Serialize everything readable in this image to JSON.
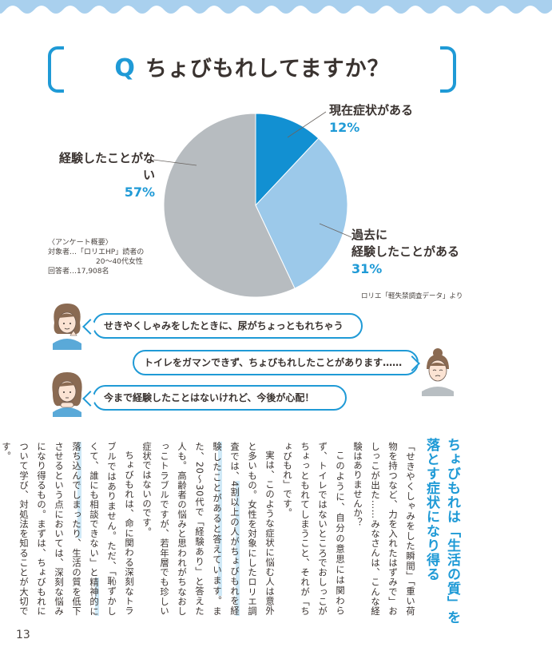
{
  "title": {
    "q": "Q",
    "text": "ちょびもれしてますか？"
  },
  "chart_data": {
    "type": "pie",
    "slices": [
      {
        "label": "現在症状がある",
        "value": 12,
        "display": "12%",
        "color": "#1290d2"
      },
      {
        "label": "過去に 経験したことがある",
        "value": 31,
        "display": "31%",
        "color": "#9cc9ea"
      },
      {
        "label": "経験したことがない",
        "value": 57,
        "display": "57%",
        "color": "#b7bcc0"
      }
    ]
  },
  "labels": {
    "current": "現在症状がある",
    "current_pct": "12%",
    "past_1": "過去に",
    "past_2": "経験したことがある",
    "past_pct": "31%",
    "never": "経験したことがない",
    "never_pct": "57%"
  },
  "survey": {
    "line1": "〈アンケート概要〉",
    "line2": "対象者…「ロリエHP」読者の",
    "line3": "20～40代女性",
    "line4": "回答者…17,908名"
  },
  "source": "ロリエ「軽失禁調査データ」より",
  "bubbles": [
    "せきやくしゃみをしたときに、尿がちょっともれちゃう",
    "トイレをガマンできず、ちょびもれしたことがあります……",
    "今まで経験したことはないけれど、今後が心配！"
  ],
  "article": {
    "heading": "ちょびもれは「生活の質」を落とす症状になり得る",
    "p1": "「せきやくしゃみをした瞬間」「重い荷物を持つなど、力を入れたはずみで」おしっこが出た……みなさんは、こんな経験はありませんか？",
    "p2": "このように、自分の意思には関わらず、トイレではないところでおしっこがちょっともれてしまうこと、それが「ちょびもれ」です。",
    "p3a": "実は、このような症状に悩む人は意外と多いもの。女性を対象にしたロリエ調査では、",
    "p3hl": "4割以上の人がちょびもれを経験したことがあると答えています",
    "p3b": "。また、20～30代で「経験あり」と答えた人も。高齢者の悩みと思われがちなおしっこトラブルですが、若年層でも珍しい症状ではないのです。",
    "p4a": "ちょびもれは、命に関わる深刻なトラブルではありません。ただ、「恥ずかしくて、誰にも相談できない」と",
    "p4hl": "精神的に落ち込んでしまったり",
    "p4b": "、生活の質を低下させるという点においては、深刻な悩みになり得るもの。まずは、ちょびもれについて学び、対処法を知ることが大切です。"
  },
  "page_number": "13",
  "colors": {
    "accent": "#1f9ad6",
    "wave": "#a9d0ee",
    "text": "#3a3330"
  }
}
